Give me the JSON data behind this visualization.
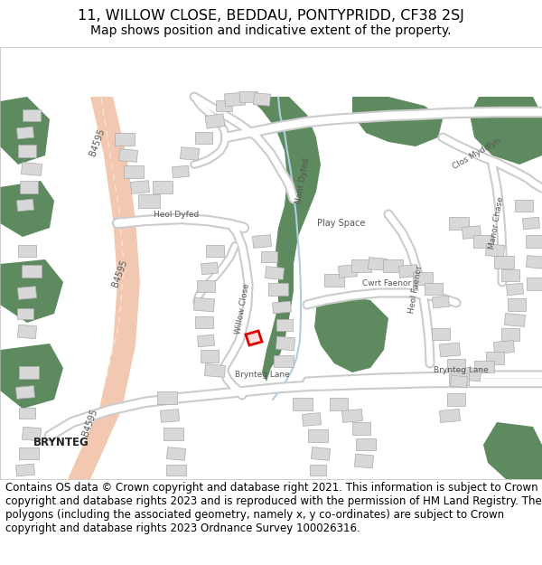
{
  "title_line1": "11, WILLOW CLOSE, BEDDAU, PONTYPRIDD, CF38 2SJ",
  "title_line2": "Map shows position and indicative extent of the property.",
  "footer_text": "Contains OS data © Crown copyright and database right 2021. This information is subject to Crown copyright and database rights 2023 and is reproduced with the permission of HM Land Registry. The polygons (including the associated geometry, namely x, y co-ordinates) are subject to Crown copyright and database rights 2023 Ordnance Survey 100026316.",
  "title_fontsize": 11.5,
  "subtitle_fontsize": 10,
  "footer_fontsize": 8.5,
  "fig_width": 6.0,
  "fig_height": 6.25,
  "dpi": 100,
  "road_color": "#f2c9b0",
  "green_color": "#5d8a5e",
  "building_color": "#d8d8d8",
  "building_edge_color": "#aaaaaa",
  "road_edge_color": "#cccccc",
  "stream_color": "#b0cce0",
  "highlight_fill": "#ffffff",
  "highlight_edge": "#dd0000",
  "text_dark": "#333333",
  "road_label_color": "#555555"
}
